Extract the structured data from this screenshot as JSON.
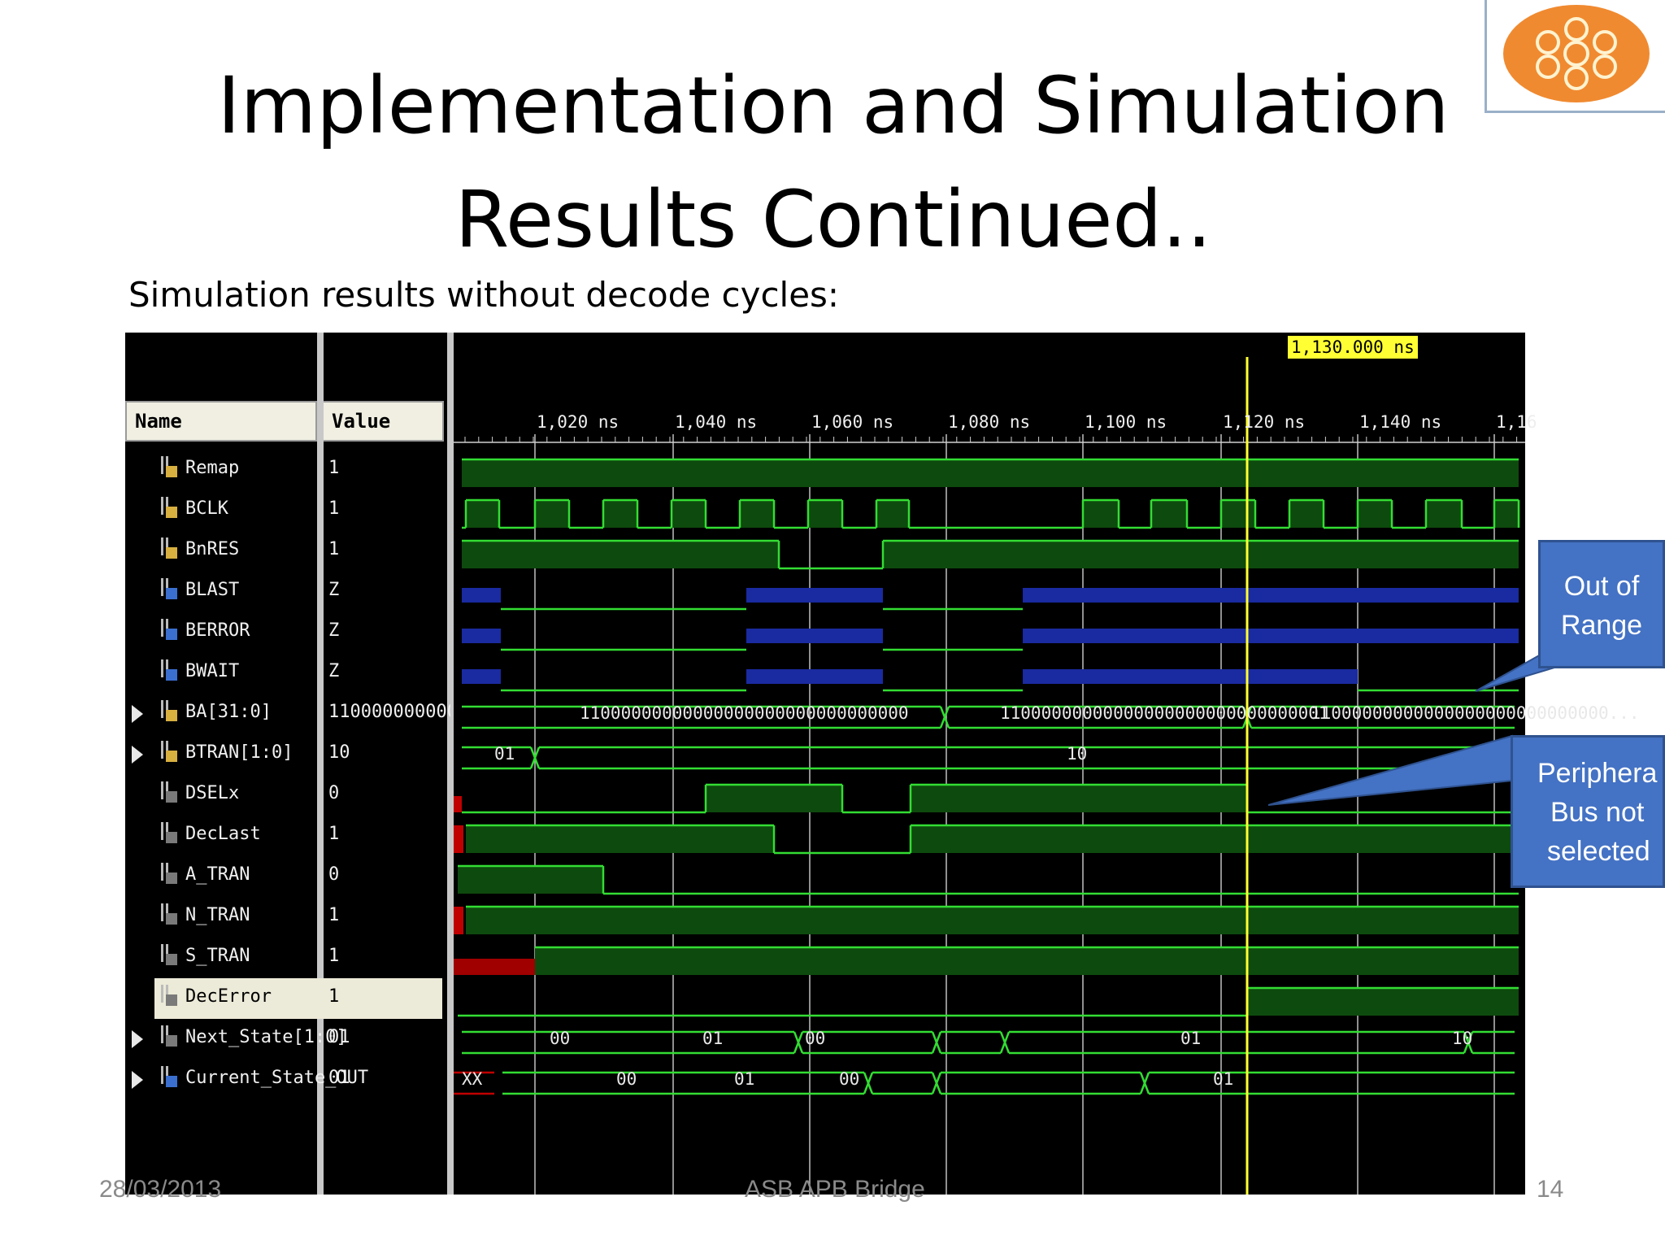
{
  "slide": {
    "title_line1": "Implementation and Simulation",
    "title_line2": "Results Continued..",
    "subtitle": "Simulation results without decode cycles:",
    "footer_date": "28/03/2013",
    "footer_center": "ASB APB Bridge",
    "page_number": "14"
  },
  "waveform": {
    "name_header": "Name",
    "value_header": "Value",
    "cursor_label": "1,130.000 ns",
    "time_ticks": [
      "1,020 ns",
      "1,040 ns",
      "1,060 ns",
      "1,080 ns",
      "1,100 ns",
      "1,120 ns",
      "1,140 ns",
      "1,16"
    ],
    "signals": [
      {
        "name": "Remap",
        "value": "1"
      },
      {
        "name": "BCLK",
        "value": "1"
      },
      {
        "name": "BnRES",
        "value": "1"
      },
      {
        "name": "BLAST",
        "value": "Z"
      },
      {
        "name": "BERROR",
        "value": "Z"
      },
      {
        "name": "BWAIT",
        "value": "Z"
      },
      {
        "name": "BA[31:0]",
        "value": "110000000000000"
      },
      {
        "name": "BTRAN[1:0]",
        "value": "10"
      },
      {
        "name": "DSELx",
        "value": "0"
      },
      {
        "name": "DecLast",
        "value": "1"
      },
      {
        "name": "A_TRAN",
        "value": "0"
      },
      {
        "name": "N_TRAN",
        "value": "1"
      },
      {
        "name": "S_TRAN",
        "value": "1"
      },
      {
        "name": "DecError",
        "value": "1"
      },
      {
        "name": "Next_State[1:0]",
        "value": "01"
      },
      {
        "name": "Current_State_OUT",
        "value": "01"
      }
    ],
    "bus_values": {
      "ba_1": "11000000000000000000000000000000",
      "ba_2": "11000000000000000000000000000001",
      "ba_3": "11000000000000000000000000000...",
      "btran_1": "01",
      "btran_2": "10",
      "next_1": "00",
      "next_2": "01",
      "next_3": "00",
      "next_4": "01",
      "next_5": "10",
      "cur_1": "XX",
      "cur_2": "00",
      "cur_3": "01",
      "cur_4": "00",
      "cur_5": "01"
    }
  },
  "callouts": {
    "out_of_range_line1": "Out  of",
    "out_of_range_line2": "Range",
    "peripheral_line1": "Periphera",
    "peripheral_line2": "Bus  not",
    "peripheral_line3": "selected"
  },
  "colors": {
    "wave_green": "#33dd33",
    "wave_fill": "#0d4a0d",
    "wave_blue": "#1a2aa0",
    "cursor_yellow": "#ffff33",
    "callout_blue": "#4472c4"
  }
}
